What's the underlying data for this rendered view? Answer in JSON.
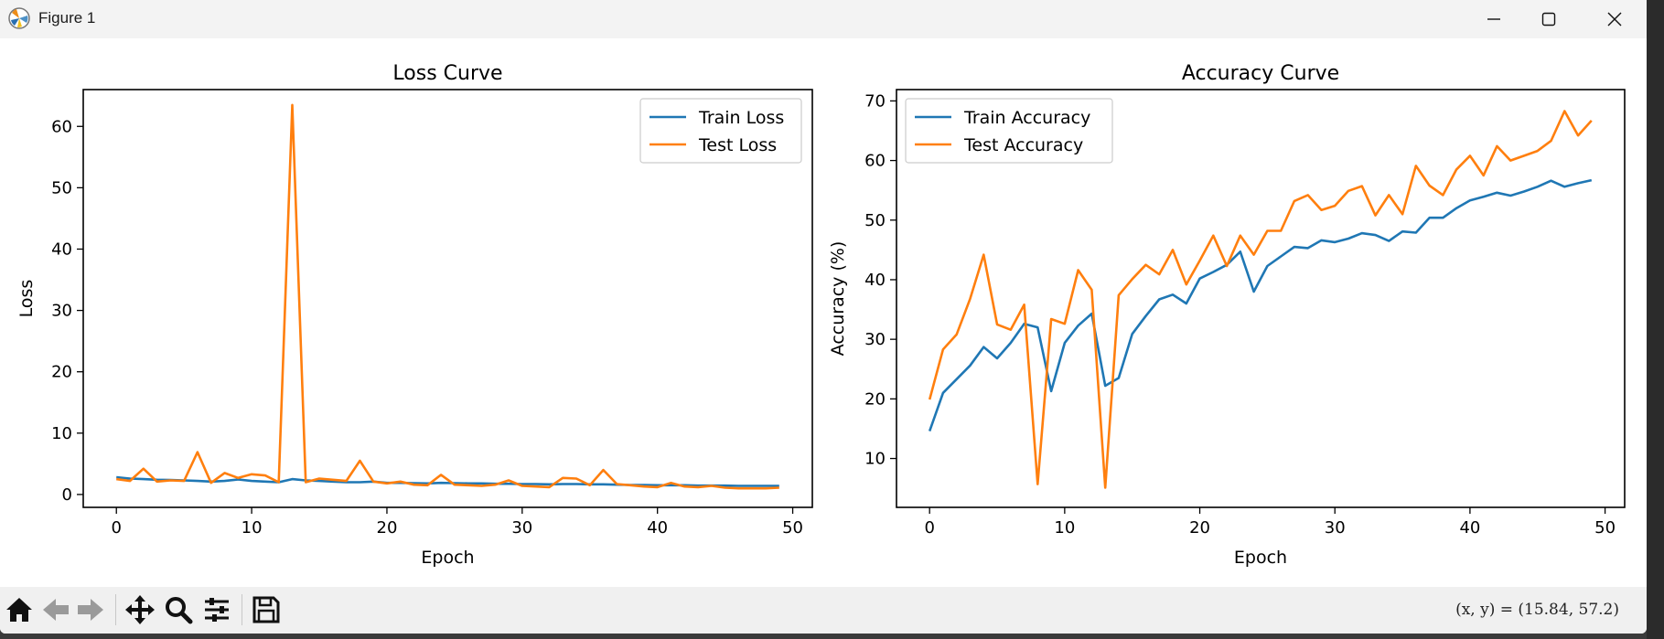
{
  "window": {
    "title": "Figure 1",
    "icon": "matplotlib-icon",
    "controls": [
      "minimize-icon",
      "maximize-icon",
      "close-icon"
    ]
  },
  "toolbar": {
    "buttons": [
      "home-icon",
      "back-icon",
      "forward-icon",
      "pan-icon",
      "zoom-icon",
      "configure-icon",
      "save-icon"
    ],
    "coords": "(x,  y) = (15.84,  57.2)"
  },
  "colors": {
    "train": "#1f77b4",
    "test": "#ff7f0e"
  },
  "chart_data": [
    {
      "type": "line",
      "title": "Loss Curve",
      "xlabel": "Epoch",
      "ylabel": "Loss",
      "xlim": [
        -2.45,
        51.45
      ],
      "ylim": [
        -2.1,
        66.0
      ],
      "xticks": [
        0,
        10,
        20,
        30,
        40,
        50
      ],
      "yticks": [
        0,
        10,
        20,
        30,
        40,
        50,
        60
      ],
      "legend_position": "top-right",
      "grid": false,
      "x": [
        0,
        1,
        2,
        3,
        4,
        5,
        6,
        7,
        8,
        9,
        10,
        11,
        12,
        13,
        14,
        15,
        16,
        17,
        18,
        19,
        20,
        21,
        22,
        23,
        24,
        25,
        26,
        27,
        28,
        29,
        30,
        31,
        32,
        33,
        34,
        35,
        36,
        37,
        38,
        39,
        40,
        41,
        42,
        43,
        44,
        45,
        46,
        47,
        48,
        49
      ],
      "series": [
        {
          "name": "Train Loss",
          "color": "#1f77b4",
          "values": [
            2.8,
            2.6,
            2.5,
            2.4,
            2.35,
            2.3,
            2.2,
            2.1,
            2.2,
            2.45,
            2.2,
            2.1,
            2.0,
            2.5,
            2.3,
            2.2,
            2.1,
            2.0,
            2.0,
            2.1,
            1.9,
            1.9,
            1.85,
            1.8,
            1.9,
            1.85,
            1.8,
            1.8,
            1.75,
            1.75,
            1.7,
            1.7,
            1.65,
            1.7,
            1.7,
            1.65,
            1.65,
            1.6,
            1.55,
            1.55,
            1.5,
            1.5,
            1.5,
            1.45,
            1.45,
            1.45,
            1.4,
            1.4,
            1.4,
            1.4
          ]
        },
        {
          "name": "Test Loss",
          "color": "#ff7f0e",
          "values": [
            2.5,
            2.2,
            4.2,
            2.1,
            2.3,
            2.2,
            6.9,
            1.9,
            3.5,
            2.7,
            3.3,
            3.1,
            2.0,
            63.5,
            2.0,
            2.6,
            2.4,
            2.2,
            5.5,
            2.1,
            1.8,
            2.1,
            1.6,
            1.5,
            3.2,
            1.6,
            1.5,
            1.4,
            1.6,
            2.3,
            1.4,
            1.3,
            1.2,
            2.7,
            2.6,
            1.5,
            4.0,
            1.7,
            1.5,
            1.3,
            1.2,
            1.9,
            1.3,
            1.2,
            1.4,
            1.1,
            1.0,
            1.0,
            1.0,
            1.1
          ]
        }
      ]
    },
    {
      "type": "line",
      "title": "Accuracy Curve",
      "xlabel": "Epoch",
      "ylabel": "Accuracy (%)",
      "xlim": [
        -2.45,
        51.45
      ],
      "ylim": [
        1.8,
        71.9
      ],
      "xticks": [
        0,
        10,
        20,
        30,
        40,
        50
      ],
      "yticks": [
        10,
        20,
        30,
        40,
        50,
        60,
        70
      ],
      "legend_position": "top-left",
      "grid": false,
      "x": [
        0,
        1,
        2,
        3,
        4,
        5,
        6,
        7,
        8,
        9,
        10,
        11,
        12,
        13,
        14,
        15,
        16,
        17,
        18,
        19,
        20,
        21,
        22,
        23,
        24,
        25,
        26,
        27,
        28,
        29,
        30,
        31,
        32,
        33,
        34,
        35,
        36,
        37,
        38,
        39,
        40,
        41,
        42,
        43,
        44,
        45,
        46,
        47,
        48,
        49
      ],
      "series": [
        {
          "name": "Train Accuracy",
          "color": "#1f77b4",
          "values": [
            14.6,
            21.0,
            23.3,
            25.6,
            28.7,
            26.8,
            29.4,
            32.6,
            32.0,
            21.3,
            29.4,
            32.3,
            34.3,
            22.2,
            23.5,
            30.9,
            33.9,
            36.7,
            37.5,
            36.0,
            40.2,
            41.3,
            42.5,
            44.7,
            38.0,
            42.3,
            43.9,
            45.5,
            45.3,
            46.6,
            46.3,
            46.9,
            47.8,
            47.5,
            46.5,
            48.1,
            47.9,
            50.4,
            50.4,
            52.0,
            53.3,
            53.9,
            54.6,
            54.1,
            54.8,
            55.6,
            56.6,
            55.6,
            56.2,
            56.7
          ]
        },
        {
          "name": "Test Accuracy",
          "color": "#ff7f0e",
          "values": [
            19.9,
            28.3,
            30.8,
            36.8,
            44.2,
            32.5,
            31.6,
            35.8,
            5.7,
            33.4,
            32.6,
            41.6,
            38.3,
            5.1,
            37.4,
            40.1,
            42.5,
            40.9,
            45.0,
            39.2,
            43.2,
            47.4,
            42.3,
            47.4,
            44.2,
            48.2,
            48.2,
            53.2,
            54.2,
            51.7,
            52.4,
            54.9,
            55.7,
            50.8,
            54.2,
            51.0,
            59.1,
            55.8,
            54.2,
            58.5,
            60.8,
            57.5,
            62.4,
            60.0,
            60.8,
            61.6,
            63.3,
            68.3,
            64.2,
            66.7
          ]
        }
      ]
    }
  ]
}
